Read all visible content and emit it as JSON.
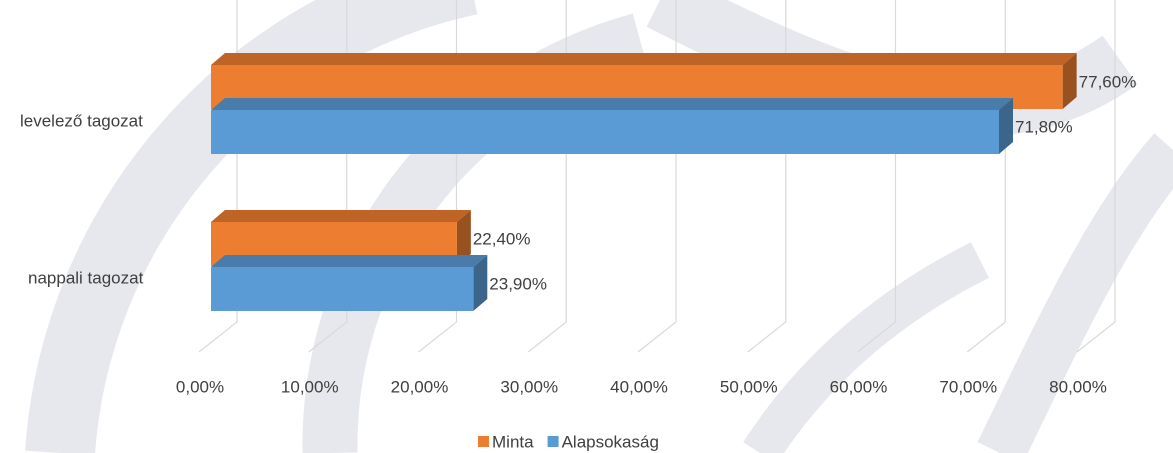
{
  "chart_data": {
    "type": "bar3d_horizontal",
    "categories": [
      "levelező tagozat",
      "nappali tagozat"
    ],
    "series": [
      {
        "name": "Minta",
        "color": "#ED7D31",
        "values": [
          77.6,
          22.4
        ],
        "value_labels": [
          "77,60%",
          "22,40%"
        ]
      },
      {
        "name": "Alapsokaság",
        "color": "#5B9BD5",
        "values": [
          71.8,
          23.9
        ],
        "value_labels": [
          "71,80%",
          "23,90%"
        ]
      }
    ],
    "xlim": [
      0,
      80
    ],
    "xticks": [
      {
        "value": 0,
        "label": "0,00%"
      },
      {
        "value": 10,
        "label": "10,00%"
      },
      {
        "value": 20,
        "label": "20,00%"
      },
      {
        "value": 30,
        "label": "30,00%"
      },
      {
        "value": 40,
        "label": "40,00%"
      },
      {
        "value": 50,
        "label": "50,00%"
      },
      {
        "value": 60,
        "label": "60,00%"
      },
      {
        "value": 70,
        "label": "70,00%"
      },
      {
        "value": 80,
        "label": "80,00%"
      }
    ],
    "grid": true,
    "legend": "bottom"
  }
}
